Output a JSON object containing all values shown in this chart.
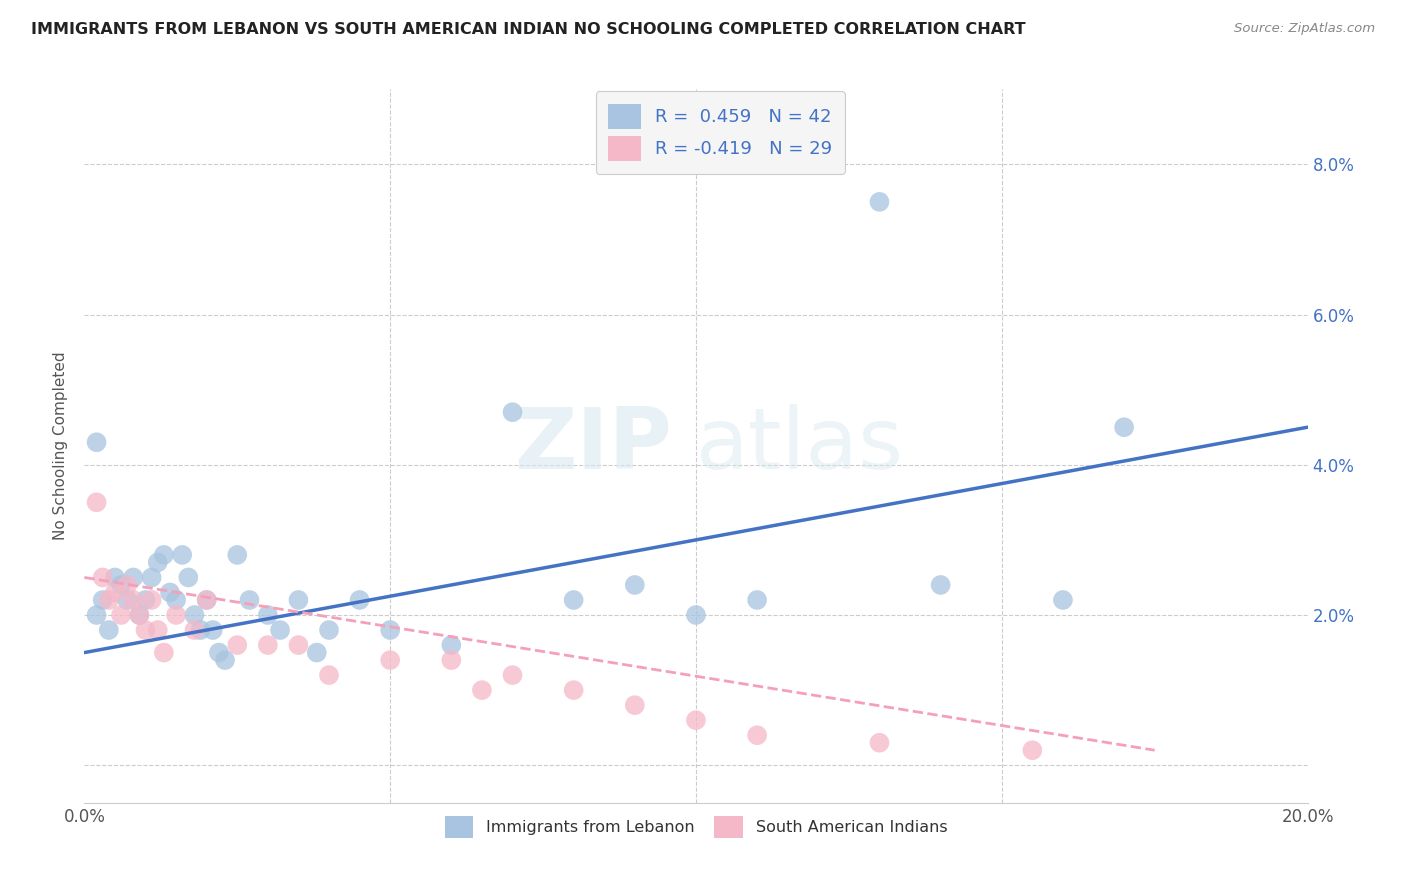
{
  "title": "IMMIGRANTS FROM LEBANON VS SOUTH AMERICAN INDIAN NO SCHOOLING COMPLETED CORRELATION CHART",
  "source": "Source: ZipAtlas.com",
  "ylabel": "No Schooling Completed",
  "xlim": [
    0,
    0.2
  ],
  "ylim": [
    -0.005,
    0.09
  ],
  "xticks": [
    0.0,
    0.05,
    0.1,
    0.15,
    0.2
  ],
  "yticks": [
    0.0,
    0.02,
    0.04,
    0.06,
    0.08
  ],
  "xtick_labels": [
    "0.0%",
    "",
    "",
    "",
    "20.0%"
  ],
  "ytick_labels": [
    "",
    "2.0%",
    "4.0%",
    "6.0%",
    "8.0%"
  ],
  "blue_color": "#a8c4e0",
  "pink_color": "#f4b8c8",
  "blue_line_color": "#4472c4",
  "pink_line_color": "#f4a0b8",
  "watermark_zip": "ZIP",
  "watermark_atlas": "atlas",
  "blue_line_x": [
    0.0,
    0.2
  ],
  "blue_line_y": [
    0.015,
    0.045
  ],
  "pink_line_x": [
    0.0,
    0.175
  ],
  "pink_line_y": [
    0.025,
    0.002
  ],
  "blue_scatter_x": [
    0.002,
    0.003,
    0.004,
    0.005,
    0.006,
    0.007,
    0.008,
    0.009,
    0.01,
    0.011,
    0.012,
    0.013,
    0.014,
    0.015,
    0.016,
    0.017,
    0.018,
    0.019,
    0.02,
    0.021,
    0.022,
    0.023,
    0.025,
    0.027,
    0.03,
    0.032,
    0.035,
    0.038,
    0.04,
    0.045,
    0.05,
    0.06,
    0.07,
    0.08,
    0.09,
    0.1,
    0.11,
    0.13,
    0.14,
    0.16,
    0.17,
    0.002
  ],
  "blue_scatter_y": [
    0.02,
    0.022,
    0.018,
    0.025,
    0.024,
    0.022,
    0.025,
    0.02,
    0.022,
    0.025,
    0.027,
    0.028,
    0.023,
    0.022,
    0.028,
    0.025,
    0.02,
    0.018,
    0.022,
    0.018,
    0.015,
    0.014,
    0.028,
    0.022,
    0.02,
    0.018,
    0.022,
    0.015,
    0.018,
    0.022,
    0.018,
    0.016,
    0.047,
    0.022,
    0.024,
    0.02,
    0.022,
    0.075,
    0.024,
    0.022,
    0.045,
    0.043
  ],
  "pink_scatter_x": [
    0.002,
    0.003,
    0.004,
    0.005,
    0.006,
    0.007,
    0.008,
    0.009,
    0.01,
    0.011,
    0.012,
    0.013,
    0.015,
    0.018,
    0.02,
    0.025,
    0.03,
    0.035,
    0.04,
    0.05,
    0.06,
    0.065,
    0.07,
    0.08,
    0.09,
    0.1,
    0.11,
    0.13,
    0.155
  ],
  "pink_scatter_y": [
    0.035,
    0.025,
    0.022,
    0.023,
    0.02,
    0.024,
    0.022,
    0.02,
    0.018,
    0.022,
    0.018,
    0.015,
    0.02,
    0.018,
    0.022,
    0.016,
    0.016,
    0.016,
    0.012,
    0.014,
    0.014,
    0.01,
    0.012,
    0.01,
    0.008,
    0.006,
    0.004,
    0.003,
    0.002
  ]
}
